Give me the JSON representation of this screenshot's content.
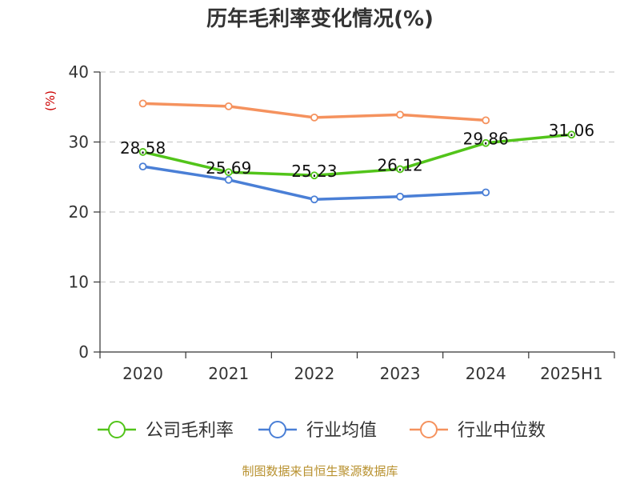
{
  "chart_data": {
    "type": "line",
    "title": "历年毛利率变化情况(%)",
    "unit": "(%)",
    "categories": [
      "2020",
      "2021",
      "2022",
      "2023",
      "2024",
      "2025H1"
    ],
    "ylim": [
      0,
      40
    ],
    "yticks": [
      "0",
      "10",
      "20",
      "30",
      "40"
    ],
    "grid": true,
    "legend_position": "bottom",
    "series": [
      {
        "name": "公司毛利率",
        "color": "#52c41a",
        "values": [
          28.58,
          25.69,
          25.23,
          26.12,
          29.86,
          31.06
        ],
        "labels": [
          "28.58",
          "25.69",
          "25.23",
          "26.12",
          "29.86",
          "31.06"
        ]
      },
      {
        "name": "行业均值",
        "color": "#4a7fd6",
        "values": [
          26.5,
          24.6,
          21.8,
          22.2,
          22.8,
          null
        ]
      },
      {
        "name": "行业中位数",
        "color": "#f5925e",
        "values": [
          35.5,
          35.1,
          33.5,
          33.9,
          33.1,
          null
        ]
      }
    ]
  },
  "source": "制图数据来自恒生聚源数据库"
}
